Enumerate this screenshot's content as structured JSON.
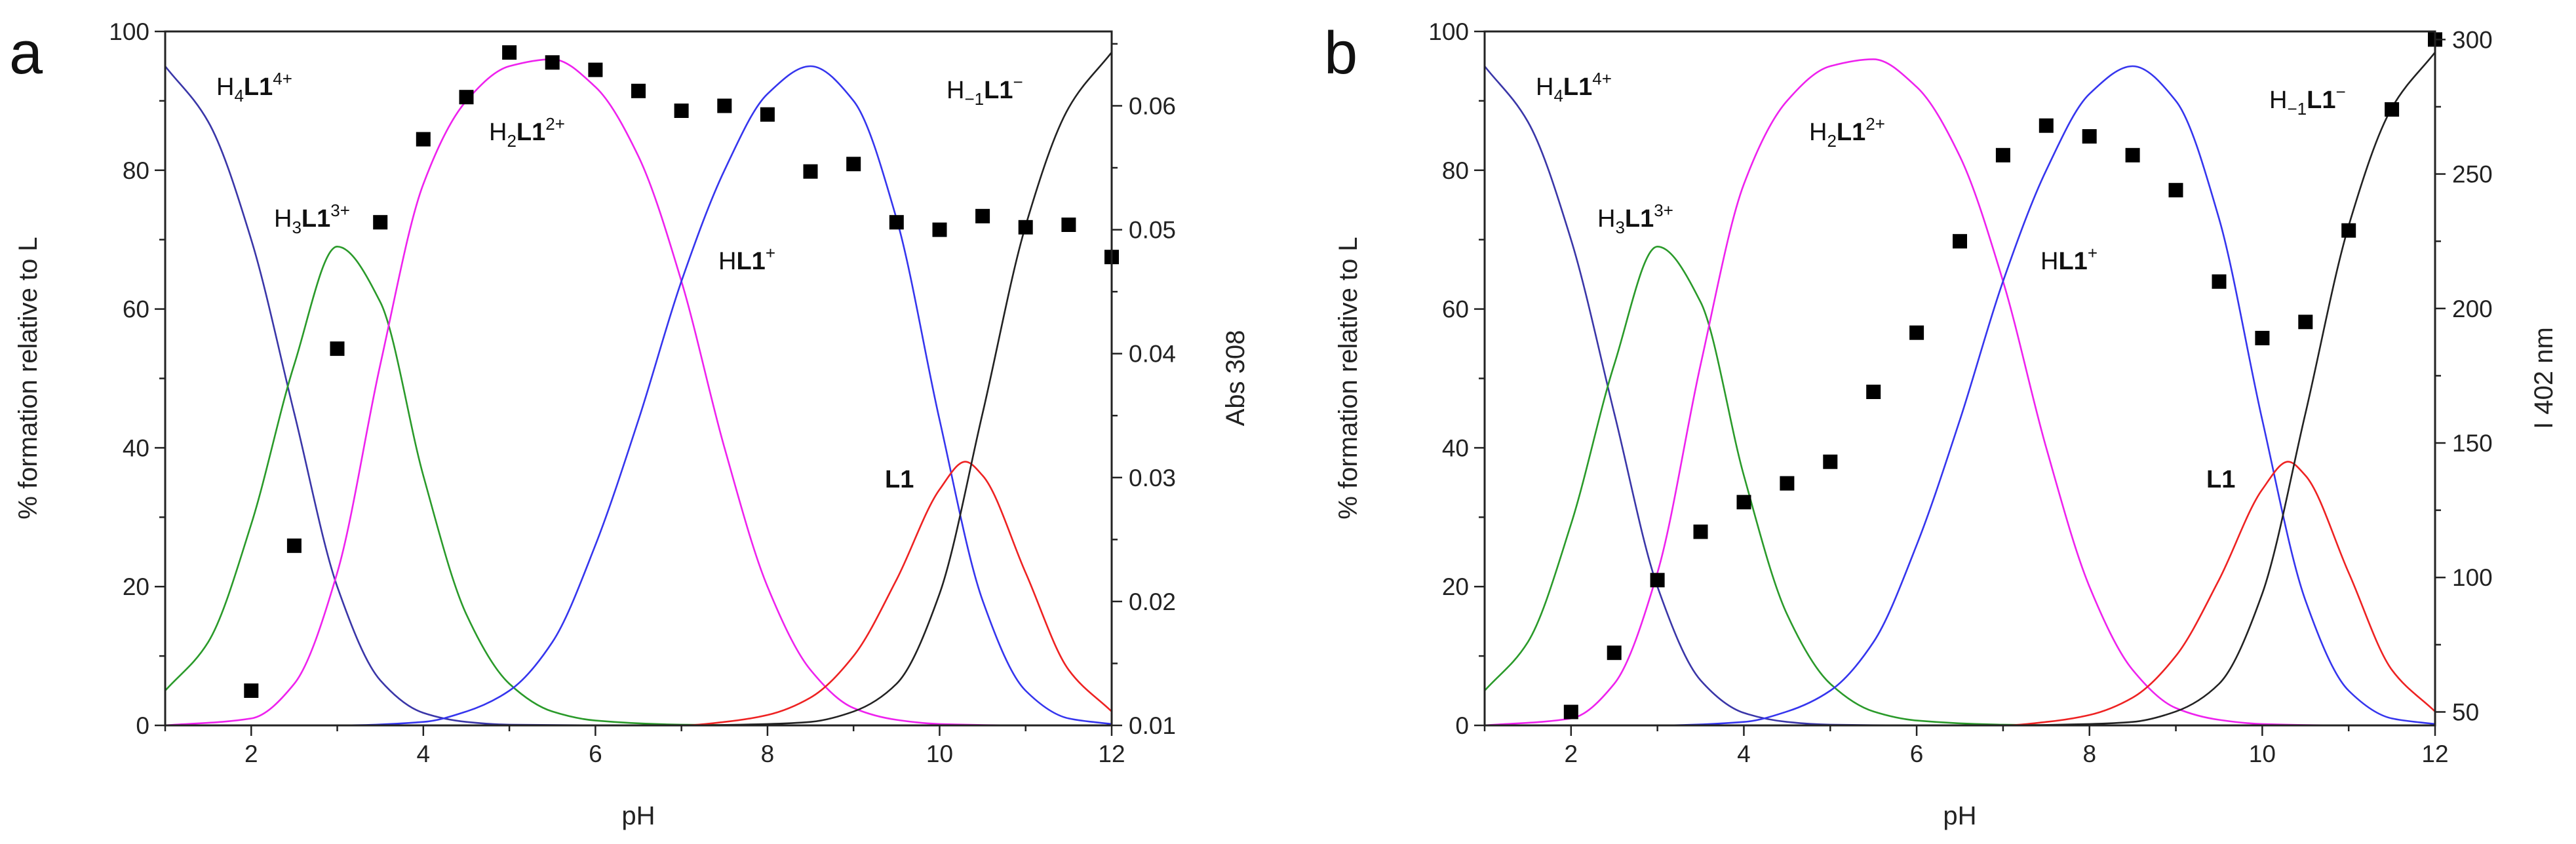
{
  "chart_data": [
    {
      "type": "line",
      "panel": "a",
      "xlabel": "pH",
      "ylabel": "% formation relative to L",
      "y2label": "Abs 308",
      "xlim": [
        1,
        12
      ],
      "ylim": [
        0,
        100
      ],
      "y2lim": [
        0.01,
        0.066
      ],
      "xticks": [
        "2",
        "4",
        "6",
        "8",
        "10",
        "12"
      ],
      "yticks": [
        "0",
        "20",
        "40",
        "60",
        "80",
        "100"
      ],
      "y2ticks": [
        "0.01",
        "0.02",
        "0.03",
        "0.04",
        "0.05",
        "0.06"
      ],
      "series": [
        {
          "name": "H4L1 4+",
          "color": "#3a36a8",
          "x": [
            1,
            1.5,
            2,
            2.5,
            3,
            3.5,
            4,
            4.5,
            5,
            6,
            7,
            8,
            9,
            10,
            11,
            12
          ],
          "values": [
            95,
            87,
            70,
            45,
            20,
            6.5,
            1.8,
            0.5,
            0.1,
            0,
            0,
            0,
            0,
            0,
            0,
            0
          ]
        },
        {
          "name": "H3L1 3+",
          "color": "#2a9a2a",
          "x": [
            1,
            1.5,
            2,
            2.5,
            3,
            3.5,
            4,
            4.5,
            5,
            5.5,
            6,
            7,
            8,
            9,
            10,
            11,
            12
          ],
          "values": [
            5,
            12,
            29,
            52,
            69,
            61,
            36,
            16,
            6,
            2,
            0.7,
            0.1,
            0,
            0,
            0,
            0,
            0
          ]
        },
        {
          "name": "H2L1 2+",
          "color": "#ee22ee",
          "x": [
            1,
            2,
            2.5,
            3,
            3.5,
            4,
            4.5,
            5,
            5.5,
            6,
            6.5,
            7,
            7.5,
            8,
            8.5,
            9,
            9.5,
            10,
            11,
            12
          ],
          "values": [
            0,
            1,
            6,
            22,
            52,
            78,
            90,
            95,
            96,
            92,
            82,
            64,
            40,
            20,
            8,
            2.5,
            0.8,
            0.2,
            0,
            0
          ]
        },
        {
          "name": "HL1 +",
          "color": "#3535ee",
          "x": [
            1,
            3,
            4,
            4.5,
            5,
            5.5,
            6,
            6.5,
            7,
            7.5,
            8,
            8.5,
            9,
            9.5,
            10,
            10.5,
            11,
            11.5,
            12
          ],
          "values": [
            0,
            0,
            0.5,
            2,
            5,
            12,
            26,
            44,
            64,
            80,
            91,
            95,
            90,
            73,
            44,
            18,
            5,
            1,
            0.2
          ]
        },
        {
          "name": "L1",
          "color": "#ee2222",
          "x": [
            1,
            7,
            7.5,
            8,
            8.5,
            9,
            9.5,
            10,
            10.3,
            10.5,
            11,
            11.5,
            12
          ],
          "values": [
            0,
            0,
            0.5,
            1.5,
            4,
            10,
            21,
            34,
            38,
            36,
            22,
            8,
            2
          ]
        },
        {
          "name": "H-1L1 -",
          "color": "#222222",
          "x": [
            1,
            7,
            8,
            8.5,
            9,
            9.5,
            10,
            10.5,
            11,
            11.5,
            12
          ],
          "values": [
            0,
            0,
            0.2,
            0.5,
            2,
            6,
            19,
            45,
            72,
            89,
            97
          ]
        }
      ],
      "scatter": {
        "name": "Abs 308",
        "axis": "right",
        "x": [
          2,
          2.5,
          3,
          3.5,
          4,
          4.5,
          5,
          5.5,
          6,
          6.5,
          7,
          7.5,
          8,
          8.5,
          9,
          9.5,
          10,
          10.5,
          11,
          11.5,
          12
        ],
        "values": [
          0.0128,
          0.0245,
          0.0404,
          0.0506,
          0.0573,
          0.0607,
          0.0643,
          0.0635,
          0.0629,
          0.0612,
          0.0596,
          0.06,
          0.0593,
          0.0547,
          0.0553,
          0.0506,
          0.05,
          0.0511,
          0.0502,
          0.0504,
          0.0478
        ]
      },
      "annotations": {
        "h4": {
          "main": "H",
          "sub": "4",
          "bold": "L1",
          "sup": "4+"
        },
        "h3": {
          "main": "H",
          "sub": "3",
          "bold": "L1",
          "sup": "3+"
        },
        "h2": {
          "main": "H",
          "sub": "2",
          "bold": "L1",
          "sup": "2+"
        },
        "h1": {
          "main": "H",
          "bold": "L1",
          "sup": "+"
        },
        "l1": {
          "bold": "L1"
        },
        "hm1": {
          "main": "H",
          "sub": "−1",
          "bold": "L1",
          "sup": "−"
        }
      }
    },
    {
      "type": "line",
      "panel": "b",
      "xlabel": "pH",
      "ylabel": "% formation relative to L",
      "y2label": "I 402 nm",
      "xlim": [
        1,
        12
      ],
      "ylim": [
        0,
        100
      ],
      "y2lim": [
        45,
        303
      ],
      "xticks": [
        "2",
        "4",
        "6",
        "8",
        "10",
        "12"
      ],
      "yticks": [
        "0",
        "20",
        "40",
        "60",
        "80",
        "100"
      ],
      "y2ticks": [
        "50",
        "100",
        "150",
        "200",
        "250",
        "300"
      ],
      "series": [
        {
          "name": "H4L1 4+",
          "color": "#3a36a8",
          "x": [
            1,
            1.5,
            2,
            2.5,
            3,
            3.5,
            4,
            4.5,
            5,
            6,
            7,
            8,
            9,
            10,
            11,
            12
          ],
          "values": [
            95,
            87,
            70,
            45,
            20,
            6.5,
            1.8,
            0.5,
            0.1,
            0,
            0,
            0,
            0,
            0,
            0,
            0
          ]
        },
        {
          "name": "H3L1 3+",
          "color": "#2a9a2a",
          "x": [
            1,
            1.5,
            2,
            2.5,
            3,
            3.5,
            4,
            4.5,
            5,
            5.5,
            6,
            7,
            8,
            9,
            10,
            11,
            12
          ],
          "values": [
            5,
            12,
            29,
            52,
            69,
            61,
            36,
            16,
            6,
            2,
            0.7,
            0.1,
            0,
            0,
            0,
            0,
            0
          ]
        },
        {
          "name": "H2L1 2+",
          "color": "#ee22ee",
          "x": [
            1,
            2,
            2.5,
            3,
            3.5,
            4,
            4.5,
            5,
            5.5,
            6,
            6.5,
            7,
            7.5,
            8,
            8.5,
            9,
            9.5,
            10,
            11,
            12
          ],
          "values": [
            0,
            1,
            6,
            22,
            52,
            78,
            90,
            95,
            96,
            92,
            82,
            64,
            40,
            20,
            8,
            2.5,
            0.8,
            0.2,
            0,
            0
          ]
        },
        {
          "name": "HL1 +",
          "color": "#3535ee",
          "x": [
            1,
            3,
            4,
            4.5,
            5,
            5.5,
            6,
            6.5,
            7,
            7.5,
            8,
            8.5,
            9,
            9.5,
            10,
            10.5,
            11,
            11.5,
            12
          ],
          "values": [
            0,
            0,
            0.5,
            2,
            5,
            12,
            26,
            44,
            64,
            80,
            91,
            95,
            90,
            73,
            44,
            18,
            5,
            1,
            0.2
          ]
        },
        {
          "name": "L1",
          "color": "#ee2222",
          "x": [
            1,
            7,
            7.5,
            8,
            8.5,
            9,
            9.5,
            10,
            10.3,
            10.5,
            11,
            11.5,
            12
          ],
          "values": [
            0,
            0,
            0.5,
            1.5,
            4,
            10,
            21,
            34,
            38,
            36,
            22,
            8,
            2
          ]
        },
        {
          "name": "H-1L1 -",
          "color": "#222222",
          "x": [
            1,
            7,
            8,
            8.5,
            9,
            9.5,
            10,
            10.5,
            11,
            11.5,
            12
          ],
          "values": [
            0,
            0,
            0.2,
            0.5,
            2,
            6,
            19,
            45,
            72,
            89,
            97
          ]
        }
      ],
      "scatter": {
        "name": "I 402 nm",
        "axis": "right",
        "x": [
          2,
          2.5,
          3,
          3.5,
          4,
          4.5,
          5,
          5.5,
          6,
          6.5,
          7,
          7.5,
          8,
          8.5,
          9,
          9.5,
          10,
          10.5,
          11,
          11.5,
          12
        ],
        "values": [
          50,
          72,
          99,
          117,
          128,
          135,
          143,
          169,
          191,
          225,
          257,
          268,
          264,
          257,
          244,
          210,
          189,
          195,
          229,
          274,
          300
        ]
      },
      "annotations": {
        "h4": {
          "main": "H",
          "sub": "4",
          "bold": "L1",
          "sup": "4+"
        },
        "h3": {
          "main": "H",
          "sub": "3",
          "bold": "L1",
          "sup": "3+"
        },
        "h2": {
          "main": "H",
          "sub": "2",
          "bold": "L1",
          "sup": "2+"
        },
        "h1": {
          "main": "H",
          "bold": "L1",
          "sup": "+"
        },
        "l1": {
          "bold": "L1"
        },
        "hm1": {
          "main": "H",
          "sub": "−1",
          "bold": "L1",
          "sup": "−"
        }
      }
    }
  ]
}
